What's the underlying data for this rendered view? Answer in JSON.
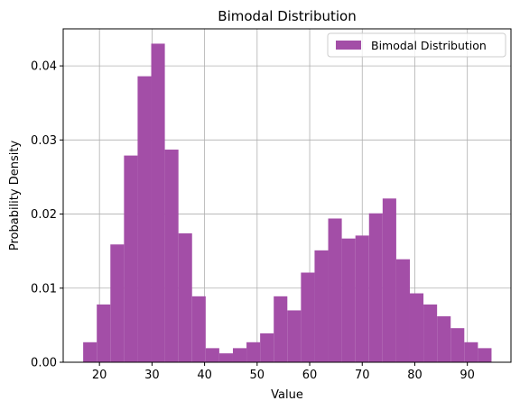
{
  "chart_data": {
    "type": "bar",
    "title": "Bimodal Distribution",
    "xlabel": "Value",
    "ylabel": "Probability Density",
    "xlim": [
      13.1,
      98.3
    ],
    "ylim": [
      0,
      0.045
    ],
    "xticks": [
      20,
      30,
      40,
      50,
      60,
      70,
      80,
      90
    ],
    "yticks": [
      0.0,
      0.01,
      0.02,
      0.03,
      0.04
    ],
    "ytick_labels": [
      "0.00",
      "0.01",
      "0.02",
      "0.03",
      "0.04"
    ],
    "grid": true,
    "legend": {
      "position": "top-right"
    },
    "bin_edges": [
      16.9,
      19.49,
      22.08,
      24.67,
      27.26,
      29.85,
      32.44,
      35.03,
      37.62,
      40.21,
      42.8,
      45.39,
      47.98,
      50.57,
      53.16,
      55.75,
      58.34,
      60.93,
      63.52,
      66.11,
      68.7,
      71.29,
      73.88,
      76.47,
      79.06,
      81.65,
      84.24,
      86.83,
      89.42,
      92.01,
      94.6
    ],
    "series": [
      {
        "name": "Bimodal Distribution",
        "color": "#a34ea7",
        "values": [
          0.0027,
          0.0078,
          0.0159,
          0.0279,
          0.0386,
          0.043,
          0.0287,
          0.0174,
          0.0089,
          0.0019,
          0.0012,
          0.0019,
          0.0027,
          0.0039,
          0.0089,
          0.007,
          0.0121,
          0.0151,
          0.0194,
          0.0167,
          0.0171,
          0.0201,
          0.0221,
          0.0139,
          0.0093,
          0.0078,
          0.0062,
          0.0046,
          0.0027,
          0.0019
        ]
      }
    ]
  }
}
